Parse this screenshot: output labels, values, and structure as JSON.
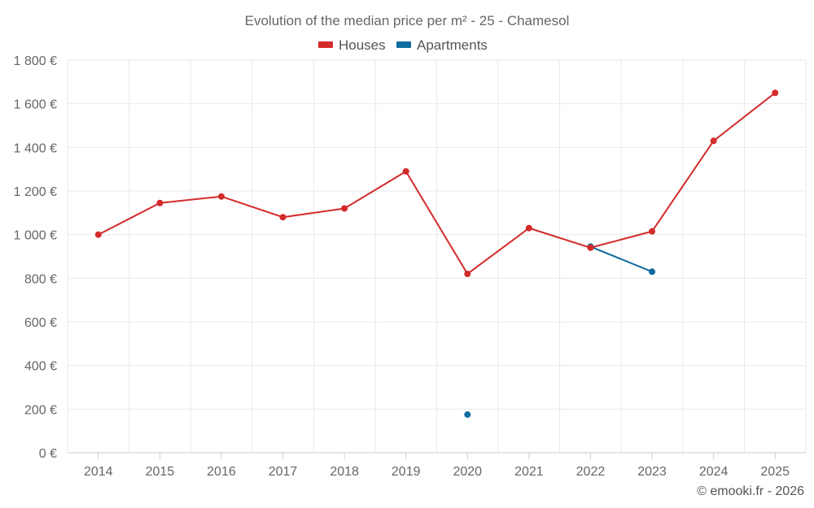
{
  "chart_data": {
    "type": "line",
    "title": "Evolution of the median price per m² - 25 - Chamesol",
    "categories": [
      "2014",
      "2015",
      "2016",
      "2017",
      "2018",
      "2019",
      "2020",
      "2021",
      "2022",
      "2023",
      "2024",
      "2025"
    ],
    "ylim": [
      0,
      1800
    ],
    "yticks": [
      0,
      200,
      400,
      600,
      800,
      1000,
      1200,
      1400,
      1600,
      1800
    ],
    "ytick_labels": [
      "0 €",
      "200 €",
      "400 €",
      "600 €",
      "800 €",
      "1 000 €",
      "1 200 €",
      "1 400 €",
      "1 600 €",
      "1 800 €"
    ],
    "grid": true,
    "legend_position": "top-center",
    "series": [
      {
        "name": "Houses",
        "color": "#d32a2a",
        "values": [
          1000,
          1145,
          1175,
          1080,
          1120,
          1290,
          820,
          1030,
          940,
          1015,
          1430,
          1650
        ]
      },
      {
        "name": "Apartments",
        "color": "#0f6c9e",
        "values": [
          null,
          null,
          null,
          null,
          null,
          null,
          175,
          null,
          945,
          830,
          null,
          null
        ]
      }
    ]
  },
  "credit": "© emooki.fr - 2026"
}
